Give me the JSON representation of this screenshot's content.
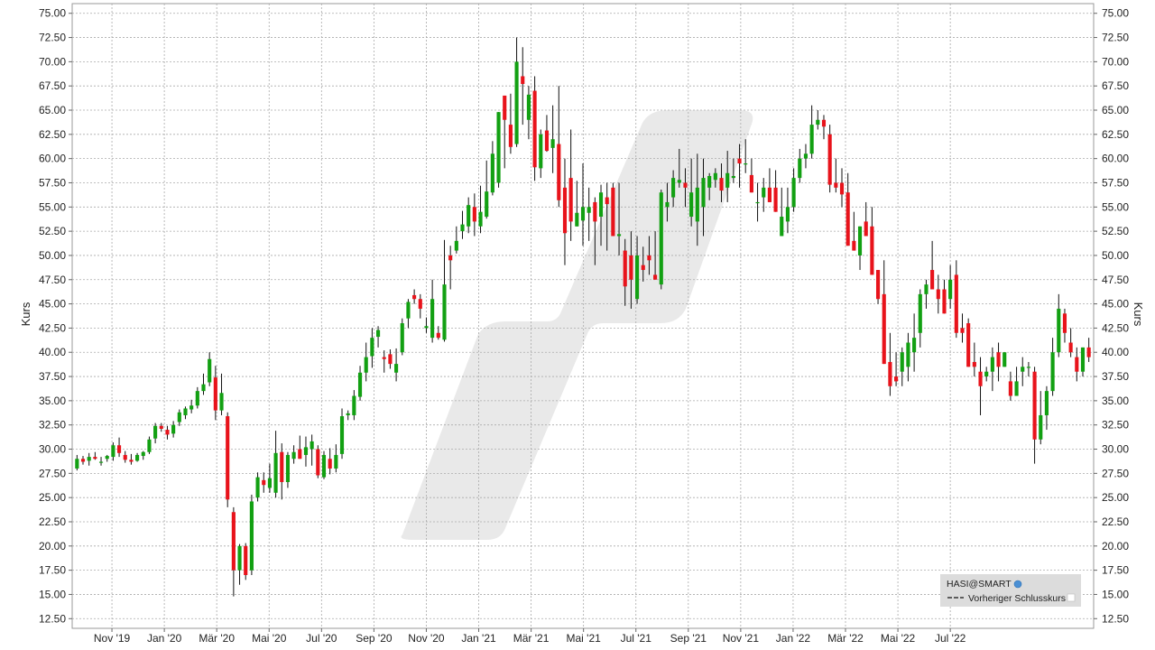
{
  "chart_data": {
    "type": "candlestick",
    "ylabel": "Kurs",
    "ylim": [
      11.5,
      76.0
    ],
    "y_ticks": [
      "75.00",
      "72.50",
      "70.00",
      "67.50",
      "65.00",
      "62.50",
      "60.00",
      "57.50",
      "55.00",
      "52.50",
      "50.00",
      "47.50",
      "45.00",
      "42.50",
      "40.00",
      "37.50",
      "35.00",
      "32.50",
      "30.00",
      "27.50",
      "25.00",
      "22.50",
      "20.00",
      "17.50",
      "15.00",
      "12.50"
    ],
    "x_ticks": [
      "Nov '19",
      "Jan '20",
      "Mär '20",
      "Mai '20",
      "Jul '20",
      "Sep '20",
      "Nov '20",
      "Jan '21",
      "Mär '21",
      "Mai '21",
      "Jul '21",
      "Sep '21",
      "Nov '21",
      "Jan '22",
      "Mär '22",
      "Mai '22",
      "Jul '22"
    ],
    "grid": true,
    "legend_position": "bottom-right",
    "legend": {
      "title": "HASI@SMART",
      "entries": [
        "Vorheriger Schlusskurs"
      ]
    },
    "colors": {
      "up": "#12a012",
      "down": "#e8131b",
      "grid": "#aaaaaa",
      "watermark": "#e6e6e6",
      "legend_bg": "#dcdcdc"
    },
    "weeks": [
      [
        28.0,
        29.4,
        27.8,
        29.0
      ],
      [
        29.0,
        29.3,
        28.4,
        28.7
      ],
      [
        28.8,
        29.6,
        28.3,
        29.2
      ],
      [
        29.2,
        29.7,
        28.9,
        29.0
      ],
      [
        28.6,
        29.2,
        28.3,
        28.7
      ],
      [
        29.0,
        29.4,
        28.7,
        29.3
      ],
      [
        29.2,
        30.7,
        28.8,
        30.4
      ],
      [
        30.4,
        31.2,
        29.2,
        29.6
      ],
      [
        29.4,
        29.8,
        28.6,
        28.9
      ],
      [
        28.9,
        29.5,
        28.4,
        28.7
      ],
      [
        28.8,
        29.6,
        28.7,
        29.4
      ],
      [
        29.3,
        29.8,
        28.9,
        29.7
      ],
      [
        29.7,
        31.3,
        29.5,
        31.0
      ],
      [
        31.1,
        32.7,
        30.6,
        32.4
      ],
      [
        32.4,
        32.7,
        31.8,
        32.1
      ],
      [
        32.0,
        32.4,
        31.0,
        31.5
      ],
      [
        31.6,
        32.9,
        31.2,
        32.5
      ],
      [
        32.8,
        34.1,
        32.4,
        33.8
      ],
      [
        33.5,
        34.4,
        33.1,
        34.2
      ],
      [
        34.1,
        35.1,
        33.7,
        34.5
      ],
      [
        34.5,
        36.4,
        34.2,
        36.0
      ],
      [
        36.0,
        37.8,
        35.6,
        36.7
      ],
      [
        36.9,
        40.0,
        36.5,
        39.3
      ],
      [
        37.4,
        38.6,
        33.0,
        34.0
      ],
      [
        34.0,
        37.8,
        33.5,
        35.8
      ],
      [
        33.4,
        33.8,
        24.0,
        24.8
      ],
      [
        23.5,
        24.0,
        14.8,
        17.5
      ],
      [
        17.5,
        20.2,
        16.0,
        20.0
      ],
      [
        20.0,
        20.3,
        16.5,
        17.0
      ],
      [
        17.5,
        25.3,
        17.0,
        24.6
      ],
      [
        25.0,
        27.6,
        24.6,
        27.1
      ],
      [
        26.8,
        27.6,
        25.5,
        26.3
      ],
      [
        26.0,
        28.5,
        25.5,
        27.0
      ],
      [
        25.5,
        31.9,
        25.0,
        29.6
      ],
      [
        29.7,
        30.6,
        24.8,
        26.6
      ],
      [
        26.6,
        29.7,
        26.0,
        29.4
      ],
      [
        29.0,
        30.4,
        28.5,
        29.7
      ],
      [
        30.0,
        31.4,
        29.3,
        29.0
      ],
      [
        29.4,
        31.3,
        28.2,
        30.2
      ],
      [
        30.0,
        31.5,
        28.3,
        30.8
      ],
      [
        30.0,
        30.4,
        27.0,
        27.3
      ],
      [
        27.1,
        29.8,
        26.9,
        29.4
      ],
      [
        29.0,
        30.1,
        27.4,
        28.0
      ],
      [
        28.0,
        30.5,
        27.6,
        29.4
      ],
      [
        29.5,
        34.2,
        29.0,
        33.4
      ],
      [
        33.5,
        34.0,
        33.0,
        33.7
      ],
      [
        33.5,
        36.1,
        33.0,
        35.5
      ],
      [
        35.4,
        38.6,
        35.0,
        37.9
      ],
      [
        37.9,
        41.0,
        37.0,
        39.5
      ],
      [
        39.6,
        42.5,
        38.4,
        41.5
      ],
      [
        41.6,
        42.7,
        40.5,
        42.3
      ],
      [
        39.5,
        40.2,
        37.9,
        39.3
      ],
      [
        39.8,
        40.3,
        38.3,
        38.8
      ],
      [
        37.9,
        40.4,
        37.0,
        38.8
      ],
      [
        40.0,
        43.5,
        39.7,
        43.0
      ],
      [
        43.5,
        45.5,
        42.5,
        45.2
      ],
      [
        45.9,
        46.5,
        45.0,
        45.5
      ],
      [
        45.5,
        46.0,
        43.5,
        44.5
      ],
      [
        42.5,
        43.6,
        42.0,
        42.7
      ],
      [
        41.5,
        47.5,
        41.0,
        45.5
      ],
      [
        42.0,
        42.7,
        41.3,
        41.5
      ],
      [
        41.3,
        51.6,
        41.1,
        47.0
      ],
      [
        50.0,
        51.0,
        46.5,
        49.5
      ],
      [
        50.5,
        53.0,
        50.2,
        51.5
      ],
      [
        52.5,
        54.6,
        51.7,
        53.2
      ],
      [
        53.0,
        56.0,
        52.3,
        55.2
      ],
      [
        55.0,
        56.4,
        52.0,
        53.5
      ],
      [
        53.0,
        57.2,
        52.3,
        54.5
      ],
      [
        54.0,
        59.8,
        53.8,
        56.6
      ],
      [
        56.5,
        61.8,
        56.2,
        60.5
      ],
      [
        57.5,
        64.0,
        57.0,
        64.8
      ],
      [
        66.5,
        66.0,
        59.0,
        64.0
      ],
      [
        63.5,
        66.7,
        60.5,
        61.2
      ],
      [
        61.5,
        72.5,
        61.2,
        70.0
      ],
      [
        68.5,
        71.5,
        63.5,
        67.7
      ],
      [
        64.0,
        67.5,
        62.0,
        66.6
      ],
      [
        67.0,
        68.5,
        57.7,
        59.1
      ],
      [
        59.0,
        63.0,
        58.0,
        62.5
      ],
      [
        62.9,
        64.5,
        60.7,
        60.8
      ],
      [
        61.1,
        65.5,
        58.5,
        62.0
      ],
      [
        61.5,
        67.5,
        55.0,
        55.7
      ],
      [
        57.0,
        60.0,
        49.0,
        52.3
      ],
      [
        58.0,
        63.0,
        51.5,
        53.5
      ],
      [
        53.0,
        57.7,
        53.0,
        54.4
      ],
      [
        53.6,
        59.5,
        51.0,
        55.0
      ],
      [
        54.4,
        57.0,
        51.5,
        55.0
      ],
      [
        55.5,
        56.0,
        49.0,
        53.5
      ],
      [
        54.0,
        57.3,
        51.0,
        56.5
      ],
      [
        56.0,
        57.5,
        50.5,
        55.3
      ],
      [
        57.0,
        57.5,
        52.0,
        52.0
      ],
      [
        52.0,
        57.5,
        50.0,
        52.2
      ],
      [
        50.5,
        51.7,
        44.8,
        46.8
      ],
      [
        50.0,
        52.5,
        44.5,
        47.5
      ],
      [
        45.5,
        52.0,
        45.0,
        50.0
      ],
      [
        49.0,
        50.9,
        47.3,
        48.5
      ],
      [
        50.0,
        52.0,
        48.0,
        49.5
      ],
      [
        48.0,
        52.5,
        47.5,
        47.5
      ],
      [
        47.0,
        56.8,
        46.5,
        56.5
      ],
      [
        55.0,
        57.5,
        53.5,
        55.5
      ],
      [
        56.0,
        58.8,
        55.0,
        58.0
      ],
      [
        57.5,
        61.0,
        57.0,
        57.8
      ],
      [
        57.5,
        59.0,
        55.0,
        57.0
      ],
      [
        54.0,
        60.0,
        53.0,
        56.5
      ],
      [
        53.5,
        60.5,
        51.0,
        57.0
      ],
      [
        55.0,
        60.0,
        52.0,
        58.0
      ],
      [
        57.0,
        58.5,
        55.7,
        58.2
      ],
      [
        57.8,
        59.0,
        57.0,
        58.5
      ],
      [
        58.0,
        59.5,
        55.5,
        56.7
      ],
      [
        57.0,
        60.8,
        55.5,
        58.5
      ],
      [
        58.0,
        60.0,
        57.5,
        58.2
      ],
      [
        60.0,
        61.5,
        57.0,
        59.5
      ],
      [
        59.5,
        62.0,
        58.5,
        59.5
      ],
      [
        58.3,
        60.0,
        57.0,
        56.5
      ],
      [
        55.5,
        57.5,
        53.5,
        55.5
      ],
      [
        56.0,
        58.0,
        54.5,
        57.0
      ],
      [
        57.0,
        59.0,
        55.8,
        55.5
      ],
      [
        57.0,
        58.8,
        55.0,
        54.5
      ],
      [
        52.0,
        57.0,
        52.3,
        54.0
      ],
      [
        53.5,
        57.0,
        52.3,
        55.0
      ],
      [
        55.0,
        59.0,
        54.5,
        58.0
      ],
      [
        58.0,
        61.0,
        57.5,
        60.0
      ],
      [
        60.0,
        61.5,
        59.0,
        60.5
      ],
      [
        60.5,
        65.5,
        60.0,
        63.5
      ],
      [
        63.5,
        65.0,
        63.0,
        64.0
      ],
      [
        64.0,
        64.5,
        62.0,
        63.3
      ],
      [
        62.5,
        63.5,
        56.5,
        57.3
      ],
      [
        57.5,
        60.0,
        56.5,
        57.0
      ],
      [
        57.5,
        59.0,
        55.0,
        56.3
      ],
      [
        56.5,
        58.5,
        53.0,
        51.0
      ],
      [
        51.5,
        54.5,
        50.5,
        50.5
      ],
      [
        50.0,
        53.0,
        48.5,
        53.0
      ],
      [
        53.5,
        55.5,
        52.0,
        52.0
      ],
      [
        53.0,
        55.0,
        48.5,
        48.0
      ],
      [
        48.5,
        48.5,
        45.0,
        45.5
      ],
      [
        46.0,
        49.5,
        39.0,
        38.8
      ],
      [
        39.0,
        42.0,
        35.5,
        36.5
      ],
      [
        37.5,
        40.0,
        36.5,
        37.0
      ],
      [
        38.0,
        40.5,
        36.5,
        40.0
      ],
      [
        38.5,
        42.0,
        37.0,
        41.0
      ],
      [
        40.0,
        44.0,
        38.0,
        41.5
      ],
      [
        42.0,
        46.5,
        40.5,
        46.0
      ],
      [
        46.0,
        47.5,
        44.5,
        47.0
      ],
      [
        48.5,
        51.5,
        46.5,
        46.5
      ],
      [
        46.5,
        48.0,
        44.0,
        45.5
      ],
      [
        46.5,
        47.5,
        44.0,
        44.0
      ],
      [
        45.5,
        49.0,
        44.5,
        47.5
      ],
      [
        48.0,
        49.5,
        41.5,
        42.0
      ],
      [
        42.5,
        44.0,
        41.0,
        42.0
      ],
      [
        43.0,
        43.5,
        38.5,
        38.5
      ],
      [
        39.0,
        41.0,
        37.5,
        38.5
      ],
      [
        38.0,
        39.5,
        33.5,
        36.5
      ],
      [
        37.5,
        38.5,
        37.0,
        38.0
      ],
      [
        38.0,
        40.5,
        36.0,
        39.5
      ],
      [
        40.0,
        41.0,
        37.0,
        38.5
      ],
      [
        38.5,
        40.0,
        38.5,
        40.0
      ],
      [
        37.0,
        38.0,
        35.0,
        35.5
      ],
      [
        35.5,
        38.5,
        35.5,
        37.0
      ],
      [
        38.0,
        39.5,
        36.5,
        38.5
      ],
      [
        38.5,
        39.0,
        37.5,
        38.5
      ],
      [
        38.0,
        38.5,
        28.5,
        31.0
      ],
      [
        31.0,
        36.0,
        30.5,
        33.5
      ],
      [
        33.5,
        36.5,
        32.0,
        36.0
      ],
      [
        36.0,
        41.5,
        35.5,
        40.0
      ],
      [
        40.0,
        46.0,
        39.5,
        44.5
      ],
      [
        44.0,
        44.5,
        41.0,
        42.0
      ],
      [
        41.0,
        42.5,
        39.5,
        40.0
      ],
      [
        39.5,
        40.5,
        37.0,
        38.0
      ],
      [
        38.0,
        40.5,
        37.5,
        40.5
      ],
      [
        40.5,
        41.5,
        39.0,
        39.5
      ]
    ]
  }
}
